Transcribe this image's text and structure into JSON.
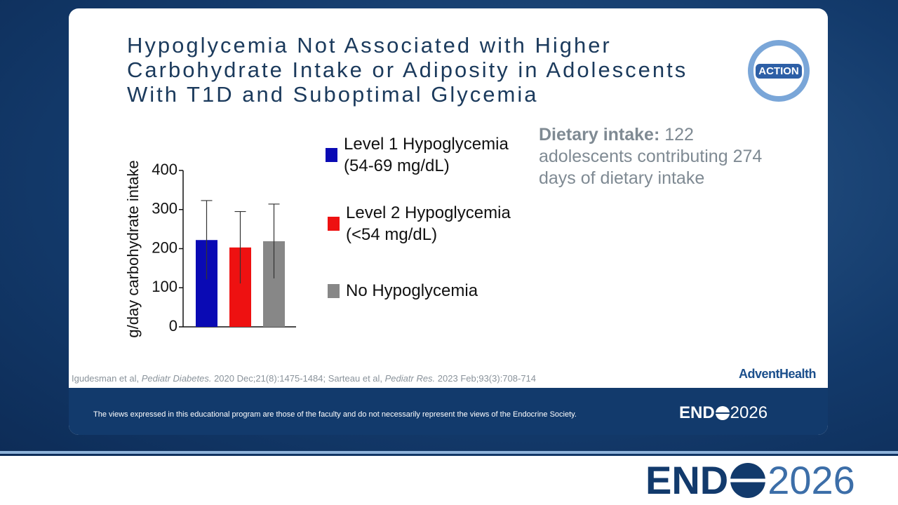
{
  "slide": {
    "title_lines": [
      "Hypoglycemia Not Associated with Higher",
      "Carbohydrate Intake or Adiposity in Adolescents",
      "With T1D and Suboptimal Glycemia"
    ],
    "logo": "ACTION",
    "note_bold": "Dietary intake:",
    "note_text": "122 adolescents contributing 274 days of dietary intake",
    "citation": [
      "Igudesman et al, ",
      "Pediatr Diabetes.",
      " 2020 Dec;21(8):1475-1484; Sarteau et al, ",
      "Pediatr Res.",
      " 2023 Feb;93(3):708-714"
    ],
    "sponsor": "AdventHealth",
    "disclaimer": "The views expressed in this educational program are those of the faculty and do not necessarily represent the views of the Endocrine Society.",
    "endo_word": "END",
    "endo_year": "2026"
  },
  "chart_data": {
    "type": "bar",
    "y_label": "g/day carbohydrate intake",
    "categories": [
      null
    ],
    "series": [
      {
        "name": "Level 1 Hypoglycemia (54-69 mg/dL)",
        "color": "#0a0ab4",
        "values": [
          222
        ],
        "errors": [
          101
        ]
      },
      {
        "name": "Level 2 Hypoglycemia (<54 mg/dL)",
        "color": "#ee1111",
        "values": [
          203
        ],
        "errors": [
          92
        ]
      },
      {
        "name": "No Hypoglycemia",
        "color": "#878787",
        "values": [
          219
        ],
        "errors": [
          95
        ]
      }
    ],
    "ylim": [
      0,
      400
    ],
    "yticks": [
      0,
      100,
      200,
      300,
      400
    ],
    "grid": false
  }
}
